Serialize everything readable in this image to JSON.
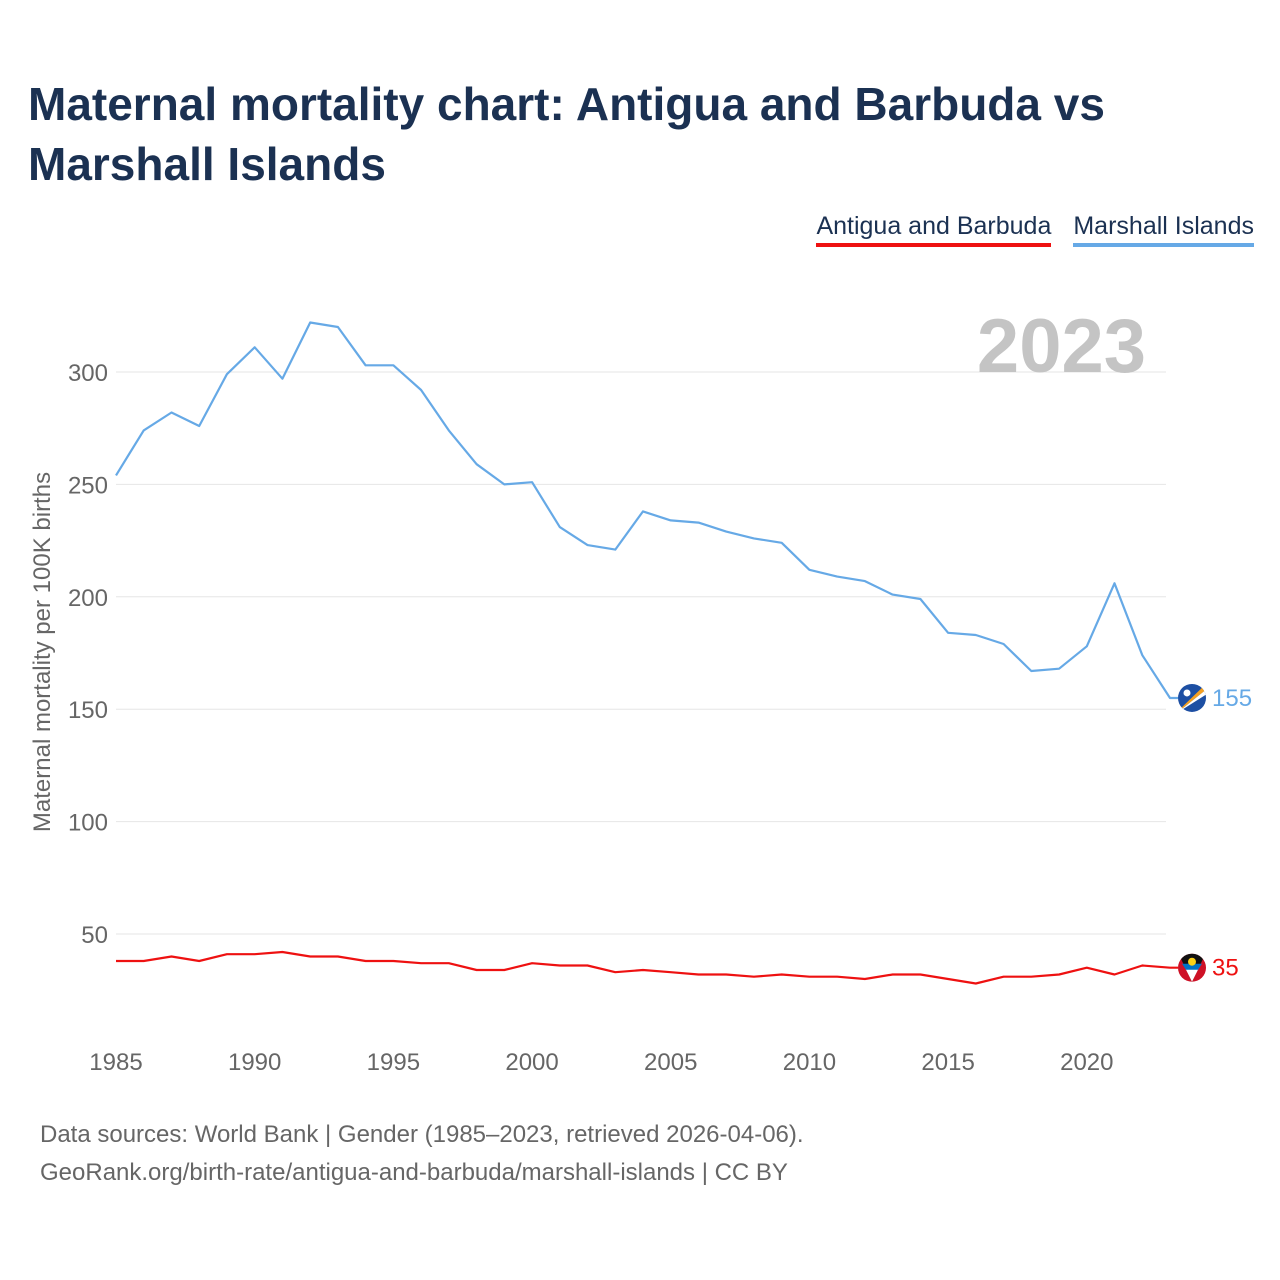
{
  "title": "Maternal mortality chart: Antigua and Barbuda vs Marshall Islands",
  "legend": [
    {
      "name": "Antigua and Barbuda",
      "color": "#ee1111"
    },
    {
      "name": "Marshall Islands",
      "color": "#66a9e6"
    }
  ],
  "year_watermark": "2023",
  "footer": {
    "line1": "Data sources: World Bank | Gender (1985–2023, retrieved 2026-04-06).",
    "line2": "GeoRank.org/birth-rate/antigua-and-barbuda/marshall-islands | CC BY"
  },
  "chart_data": {
    "type": "line",
    "title": "Maternal mortality chart: Antigua and Barbuda vs Marshall Islands",
    "xlabel": "",
    "ylabel": "Maternal mortality per 100K births",
    "xlim": [
      1985,
      2023
    ],
    "ylim": [
      20,
      330
    ],
    "grid": true,
    "legend_position": "top-right",
    "x_ticks": [
      1985,
      1990,
      1995,
      2000,
      2005,
      2010,
      2015,
      2020
    ],
    "y_ticks": [
      50,
      100,
      150,
      200,
      250,
      300
    ],
    "x": [
      1985,
      1986,
      1987,
      1988,
      1989,
      1990,
      1991,
      1992,
      1993,
      1994,
      1995,
      1996,
      1997,
      1998,
      1999,
      2000,
      2001,
      2002,
      2003,
      2004,
      2005,
      2006,
      2007,
      2008,
      2009,
      2010,
      2011,
      2012,
      2013,
      2014,
      2015,
      2016,
      2017,
      2018,
      2019,
      2020,
      2021,
      2022,
      2023
    ],
    "series": [
      {
        "name": "Marshall Islands",
        "color": "#66a9e6",
        "end_label": "155",
        "values": [
          254,
          274,
          282,
          276,
          299,
          311,
          297,
          322,
          320,
          303,
          303,
          292,
          274,
          259,
          250,
          251,
          231,
          223,
          221,
          238,
          234,
          233,
          229,
          226,
          224,
          212,
          209,
          207,
          201,
          199,
          184,
          183,
          179,
          167,
          168,
          178,
          206,
          174,
          155
        ]
      },
      {
        "name": "Antigua and Barbuda",
        "color": "#ee1111",
        "end_label": "35",
        "values": [
          38,
          38,
          40,
          38,
          41,
          41,
          42,
          40,
          40,
          38,
          38,
          37,
          37,
          34,
          34,
          37,
          36,
          36,
          33,
          34,
          33,
          32,
          32,
          31,
          32,
          31,
          31,
          30,
          32,
          32,
          30,
          28,
          31,
          31,
          32,
          35,
          32,
          36,
          35
        ]
      }
    ]
  }
}
